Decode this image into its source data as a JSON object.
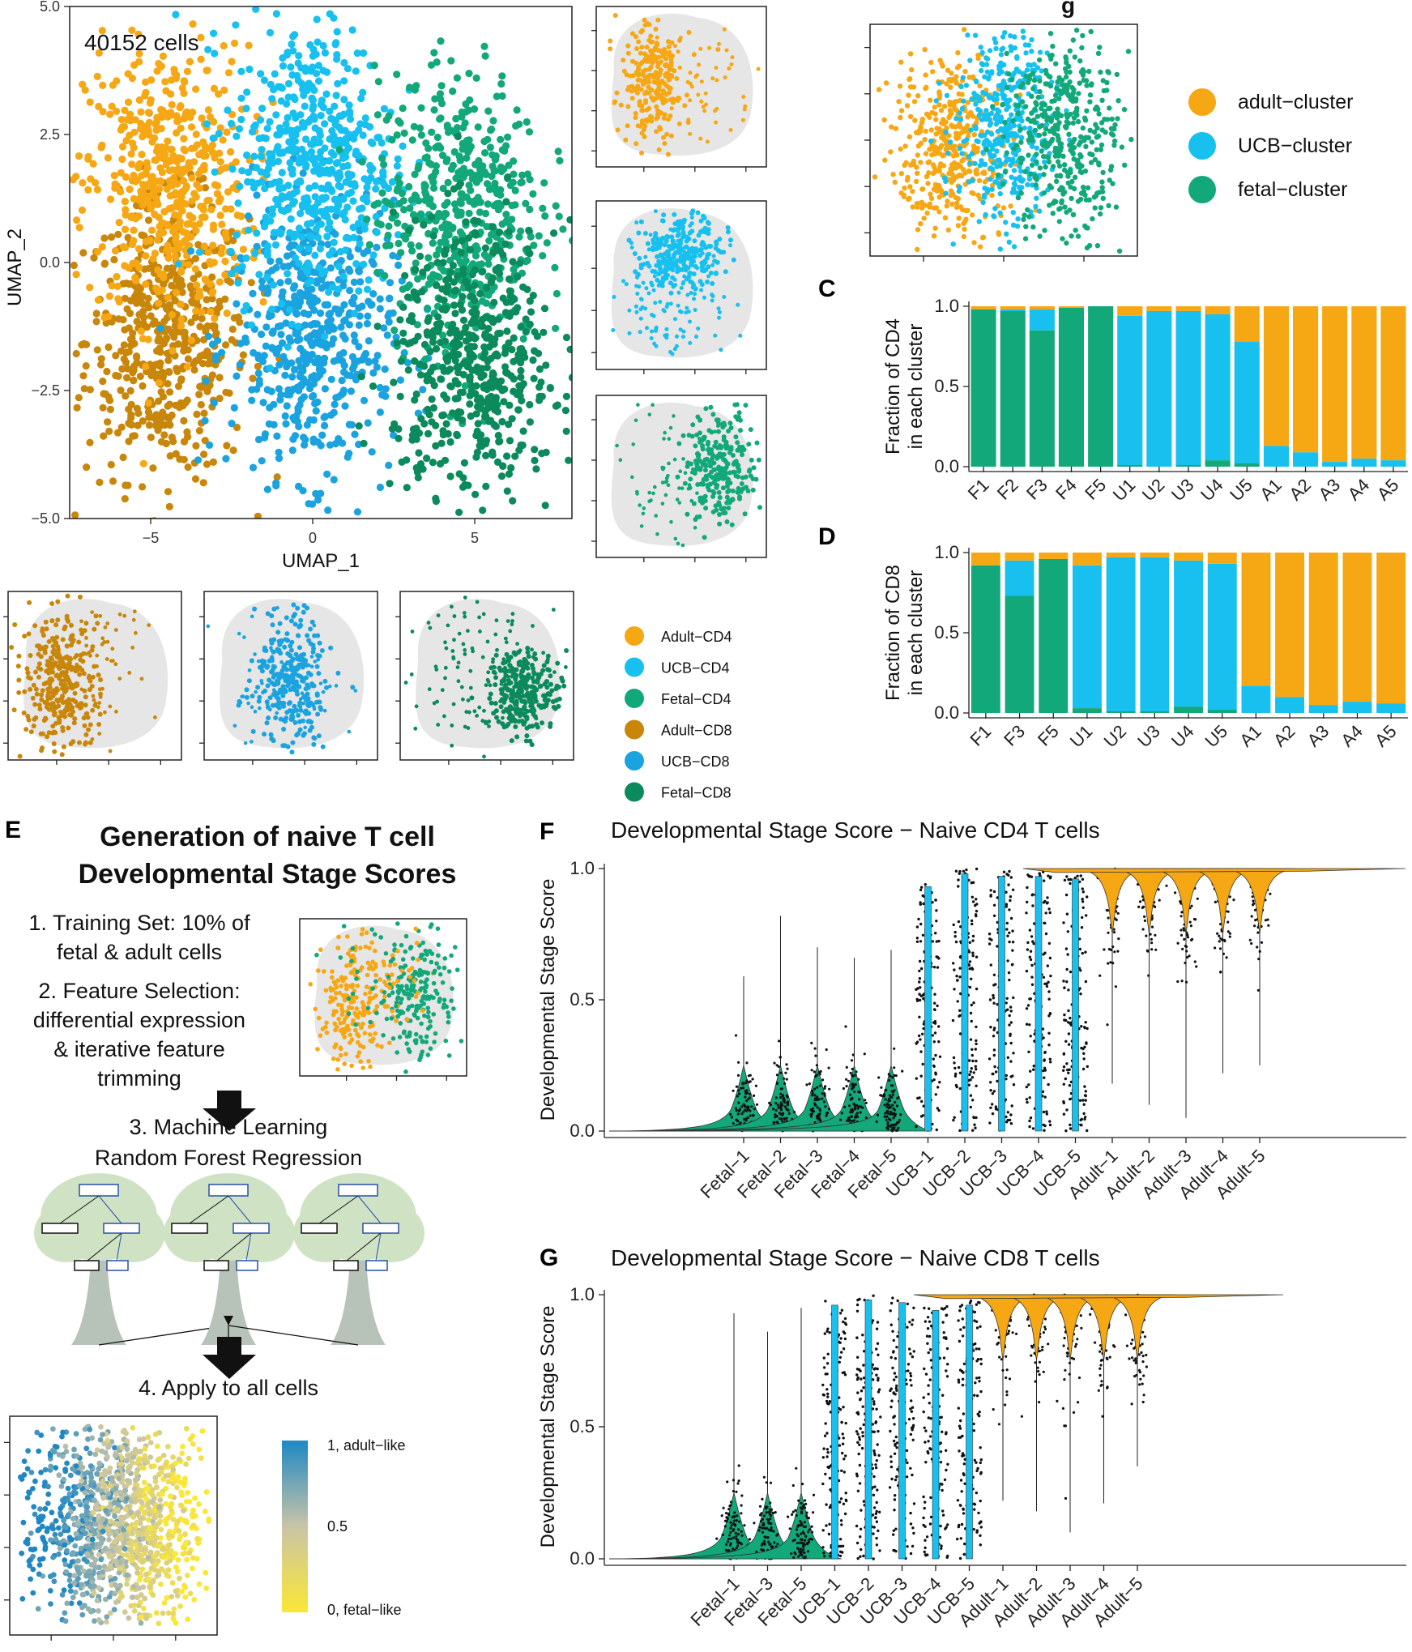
{
  "colors": {
    "adult_cd4": "#f6a714",
    "ucb_cd4": "#17c0ee",
    "fetal_cd4": "#12a87a",
    "adult_cd8": "#c8860a",
    "ucb_cd8": "#1aa3df",
    "fetal_cd8": "#0b8a5c",
    "bg_cells": "#e6e6e6",
    "grad_high": "#1f88c4",
    "grad_mid": "#c9c4a7",
    "grad_low": "#fbe735"
  },
  "panel_labels": {
    "c": "C",
    "d": "D",
    "e": "E",
    "f": "F",
    "g": "G"
  },
  "panel_b": {
    "title_fragment": "g",
    "legend": [
      {
        "label": "adult−cluster",
        "color_key": "adult_cd4"
      },
      {
        "label": "UCB−cluster",
        "color_key": "ucb_cd4"
      },
      {
        "label": "fetal−cluster",
        "color_key": "fetal_cd4"
      }
    ]
  },
  "panel_a": {
    "annotation": "40152 cells",
    "legend": [
      {
        "label": "Adult−CD4",
        "color_key": "adult_cd4"
      },
      {
        "label": "UCB−CD4",
        "color_key": "ucb_cd4"
      },
      {
        "label": "Fetal−CD4",
        "color_key": "fetal_cd4"
      },
      {
        "label": "Adult−CD8",
        "color_key": "adult_cd8"
      },
      {
        "label": "UCB−CD8",
        "color_key": "ucb_cd8"
      },
      {
        "label": "Fetal−CD8",
        "color_key": "fetal_cd8"
      }
    ]
  },
  "panel_e": {
    "title_line1": "Generation of naive T cell",
    "title_line2": "Developmental Stage Scores",
    "steps": [
      "1. Training Set: 10% of",
      "fetal & adult cells",
      "2. Feature Selection:",
      "differential expression",
      "& iterative feature",
      "trimming",
      "3. Machine Learning",
      "Random Forest Regression",
      "4. Apply to all cells"
    ],
    "gradient_labels": [
      "1, adult−like",
      "0.5",
      "0, fetal−like"
    ]
  },
  "chart_data": [
    {
      "id": "A",
      "type": "scatter",
      "title": "",
      "xlabel": "UMAP_1",
      "ylabel": "UMAP_2",
      "xlim": [
        -7.5,
        8
      ],
      "ylim": [
        -5,
        5
      ],
      "x_ticks": [
        -5,
        0,
        5
      ],
      "y_ticks": [
        -5.0,
        -2.5,
        0.0,
        2.5,
        5.0
      ],
      "y_tick_labels": [
        "−5.0",
        "−2.5",
        "0.0",
        "2.5",
        "5.0"
      ],
      "x_tick_labels": [
        "−5",
        "0",
        "5"
      ],
      "series": [
        {
          "name": "Adult−CD8",
          "color_key": "adult_cd8",
          "x_center": -4.5,
          "y_center": -1.5
        },
        {
          "name": "Adult−CD4",
          "color_key": "adult_cd4",
          "x_center": -4.5,
          "y_center": 1.5
        },
        {
          "name": "UCB−CD8",
          "color_key": "ucb_cd8",
          "x_center": 0,
          "y_center": -1.5
        },
        {
          "name": "UCB−CD4",
          "color_key": "ucb_cd4",
          "x_center": 0,
          "y_center": 2.0
        },
        {
          "name": "Fetal−CD4",
          "color_key": "fetal_cd4",
          "x_center": 4.5,
          "y_center": 1.0
        },
        {
          "name": "Fetal−CD8",
          "color_key": "fetal_cd8",
          "x_center": 5,
          "y_center": -2.0
        }
      ]
    },
    {
      "id": "C",
      "type": "bar",
      "ylabel_line1": "Fraction of CD4",
      "ylabel_line2": "in each cluster",
      "ylim": [
        0,
        1
      ],
      "y_ticks": [
        0.0,
        0.5,
        1.0
      ],
      "y_tick_labels": [
        "0.0",
        "0.5",
        "1.0"
      ],
      "categories": [
        "F1",
        "F2",
        "F3",
        "F4",
        "F5",
        "U1",
        "U2",
        "U3",
        "U4",
        "U5",
        "A1",
        "A2",
        "A3",
        "A4",
        "A5"
      ],
      "series": [
        {
          "name": "fetal−cluster",
          "color_key": "fetal_cd4",
          "values": [
            0.98,
            0.97,
            0.85,
            0.99,
            1.0,
            0.01,
            0.0,
            0.01,
            0.04,
            0.02,
            0.0,
            0.0,
            0.0,
            0.0,
            0.0
          ]
        },
        {
          "name": "UCB−cluster",
          "color_key": "ucb_cd4",
          "values": [
            0.0,
            0.01,
            0.13,
            0.0,
            0.0,
            0.93,
            0.97,
            0.96,
            0.91,
            0.76,
            0.13,
            0.09,
            0.03,
            0.05,
            0.04
          ]
        },
        {
          "name": "adult−cluster",
          "color_key": "adult_cd4",
          "values": [
            0.02,
            0.02,
            0.02,
            0.01,
            0.0,
            0.06,
            0.03,
            0.03,
            0.05,
            0.22,
            0.87,
            0.91,
            0.97,
            0.95,
            0.96
          ]
        }
      ]
    },
    {
      "id": "D",
      "type": "bar",
      "ylabel_line1": "Fraction of CD8",
      "ylabel_line2": "in each cluster",
      "ylim": [
        0,
        1
      ],
      "y_ticks": [
        0.0,
        0.5,
        1.0
      ],
      "y_tick_labels": [
        "0.0",
        "0.5",
        "1.0"
      ],
      "categories": [
        "F1",
        "F3",
        "F5",
        "U1",
        "U2",
        "U3",
        "U4",
        "U5",
        "A1",
        "A2",
        "A3",
        "A4",
        "A5"
      ],
      "series": [
        {
          "name": "fetal−cluster",
          "color_key": "fetal_cd4",
          "values": [
            0.92,
            0.73,
            0.96,
            0.03,
            0.01,
            0.01,
            0.04,
            0.02,
            0.0,
            0.0,
            0.0,
            0.0,
            0.0
          ]
        },
        {
          "name": "UCB−cluster",
          "color_key": "ucb_cd4",
          "values": [
            0.0,
            0.22,
            0.0,
            0.89,
            0.96,
            0.96,
            0.91,
            0.91,
            0.17,
            0.1,
            0.05,
            0.07,
            0.06
          ]
        },
        {
          "name": "adult−cluster",
          "color_key": "adult_cd4",
          "values": [
            0.08,
            0.05,
            0.04,
            0.08,
            0.03,
            0.03,
            0.05,
            0.07,
            0.83,
            0.9,
            0.95,
            0.93,
            0.94
          ]
        }
      ]
    },
    {
      "id": "F",
      "type": "scatter",
      "title": "Developmental Stage Score − Naive CD4 T cells",
      "ylabel": "Developmental Stage Score",
      "ylim": [
        0,
        1
      ],
      "y_ticks": [
        0.0,
        0.5,
        1.0
      ],
      "y_tick_labels": [
        "0.0",
        "0.5",
        "1.0"
      ],
      "categories": [
        "Fetal−1",
        "Fetal−2",
        "Fetal−3",
        "Fetal−4",
        "Fetal−5",
        "UCB−1",
        "UCB−2",
        "UCB−3",
        "UCB−4",
        "UCB−5",
        "Adult−1",
        "Adult−2",
        "Adult−3",
        "Adult−4",
        "Adult−5"
      ],
      "groups": [
        "fetal",
        "fetal",
        "fetal",
        "fetal",
        "fetal",
        "ucb",
        "ucb",
        "ucb",
        "ucb",
        "ucb",
        "adult",
        "adult",
        "adult",
        "adult",
        "adult"
      ],
      "max_values": [
        0.59,
        0.82,
        0.7,
        0.66,
        0.69,
        0.95,
        1.0,
        0.99,
        0.99,
        0.98,
        0.18,
        0.1,
        0.05,
        0.22,
        0.25
      ],
      "medians": [
        0.05,
        0.08,
        0.07,
        0.05,
        0.06,
        0.6,
        0.7,
        0.7,
        0.65,
        0.55,
        0.97,
        0.97,
        0.97,
        0.97,
        0.97
      ]
    },
    {
      "id": "G",
      "type": "scatter",
      "title": "Developmental Stage Score − Naive CD8 T cells",
      "ylabel": "Developmental Stage Score",
      "ylim": [
        0,
        1
      ],
      "y_ticks": [
        0.0,
        0.5,
        1.0
      ],
      "y_tick_labels": [
        "0.0",
        "0.5",
        "1.0"
      ],
      "categories": [
        "Fetal−1",
        "Fetal−3",
        "Fetal−5",
        "UCB−1",
        "UCB−2",
        "UCB−3",
        "UCB−4",
        "UCB−5",
        "Adult−1",
        "Adult−2",
        "Adult−3",
        "Adult−4",
        "Adult−5"
      ],
      "groups": [
        "fetal",
        "fetal",
        "fetal",
        "ucb",
        "ucb",
        "ucb",
        "ucb",
        "ucb",
        "adult",
        "adult",
        "adult",
        "adult",
        "adult"
      ],
      "max_values": [
        0.93,
        0.86,
        0.95,
        0.98,
        1.0,
        0.99,
        0.96,
        0.98,
        0.22,
        0.18,
        0.1,
        0.21,
        0.35
      ],
      "medians": [
        0.05,
        0.05,
        0.06,
        0.5,
        0.6,
        0.6,
        0.55,
        0.5,
        0.97,
        0.97,
        0.97,
        0.97,
        0.97
      ]
    }
  ]
}
